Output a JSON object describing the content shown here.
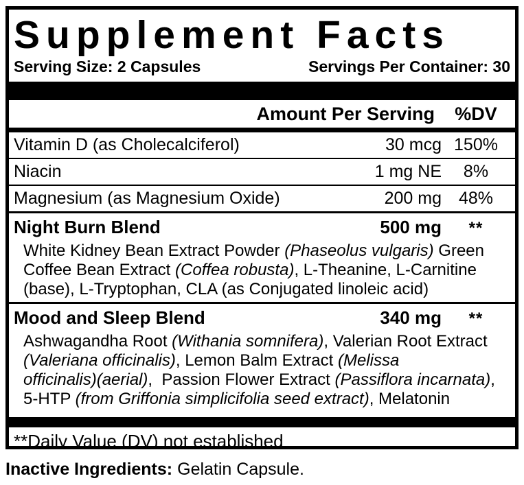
{
  "colors": {
    "ink": "#000000",
    "background": "#ffffff"
  },
  "label": {
    "title": "Supplement Facts",
    "serving_size": "Serving Size: 2 Capsules",
    "servings_per_container": "Servings Per Container: 30",
    "columns": {
      "amount": "Amount Per Serving",
      "dv": "%DV"
    },
    "rows": [
      {
        "name": "Vitamin D (as Cholecalciferol)",
        "amount": "30 mcg",
        "dv": "150%"
      },
      {
        "name": "Niacin",
        "amount": "1 mg NE",
        "dv": "8%"
      },
      {
        "name": "Magnesium (as Magnesium Oxide)",
        "amount": "200 mg",
        "dv": "48%"
      }
    ],
    "blends": [
      {
        "name": "Night Burn Blend",
        "amount": "500 mg",
        "dv": "**",
        "description": [
          [
            {
              "t": "White Kidney Bean Extract Powder "
            },
            {
              "t": "(Phaseolus vulgaris)",
              "i": true
            },
            {
              "t": " Green"
            }
          ],
          [
            {
              "t": "Coffee Bean Extract "
            },
            {
              "t": "(Coffea robusta)",
              "i": true
            },
            {
              "t": ", L-Theanine, L-Carnitine"
            }
          ],
          [
            {
              "t": "(base), L-Tryptophan, CLA (as Conjugated linoleic acid)"
            }
          ]
        ]
      },
      {
        "name": "Mood and Sleep Blend",
        "amount": "340 mg",
        "dv": "**",
        "description": [
          [
            {
              "t": "Ashwagandha Root "
            },
            {
              "t": "(Withania somnifera)",
              "i": true
            },
            {
              "t": ", Valerian Root Extract"
            }
          ],
          [
            {
              "t": "(Valeriana officinalis)",
              "i": true
            },
            {
              "t": ", Lemon Balm Extract "
            },
            {
              "t": "(Melissa",
              "i": true
            }
          ],
          [
            {
              "t": "officinalis)(aerial)",
              "i": true
            },
            {
              "t": ",  Passion Flower Extract "
            },
            {
              "t": "(Passiflora incarnata)",
              "i": true
            },
            {
              "t": ","
            }
          ],
          [
            {
              "t": "5-HTP "
            },
            {
              "t": "(from Griffonia simplicifolia seed extract)",
              "i": true
            },
            {
              "t": ", Melatonin"
            }
          ]
        ]
      }
    ],
    "footnote": "**Daily Value (DV) not established",
    "inactive_ingredients": {
      "label": "Inactive Ingredients:",
      "value": "Gelatin Capsule."
    }
  }
}
